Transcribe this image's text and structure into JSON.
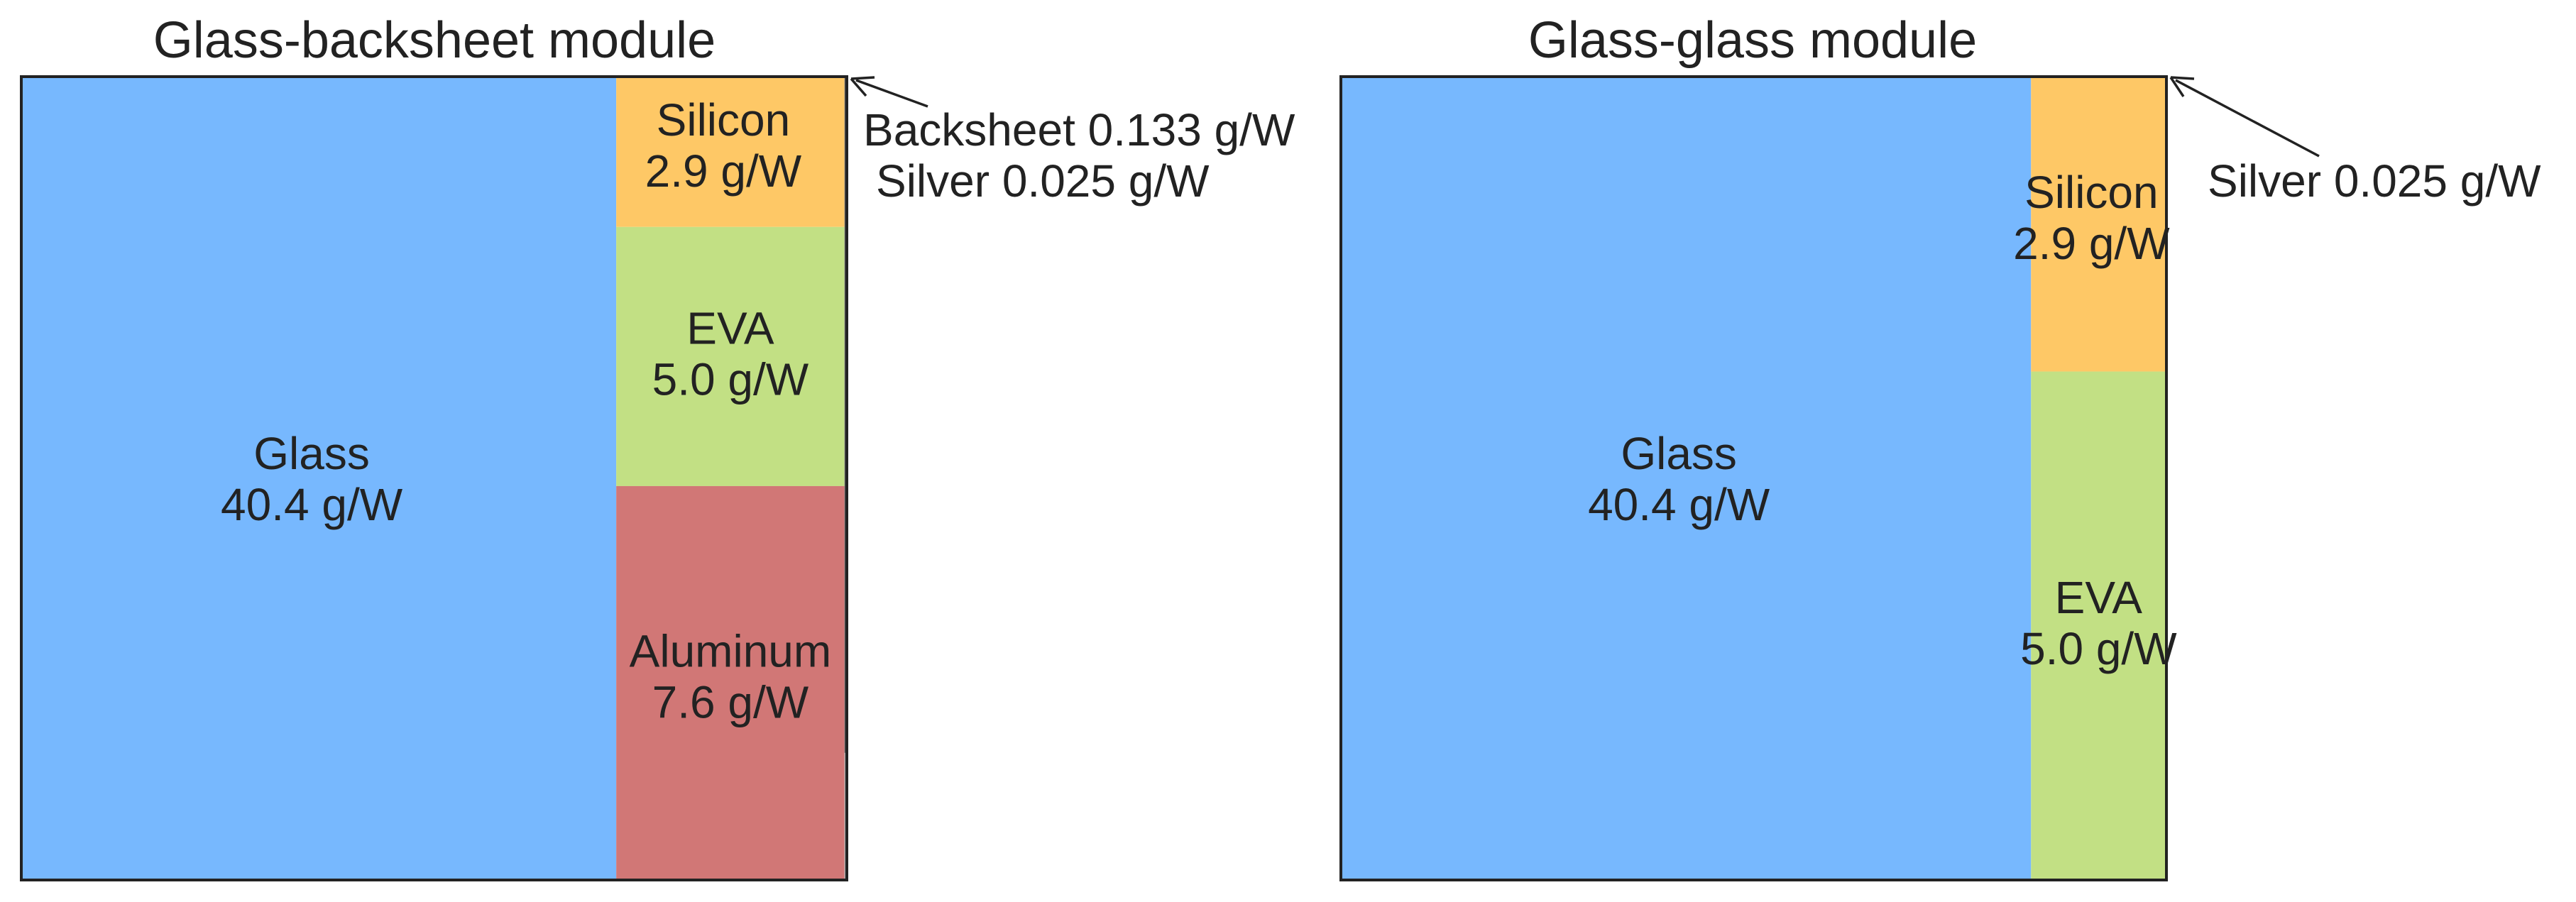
{
  "chart_data": [
    {
      "type": "treemap",
      "title": "Glass-backsheet module",
      "unit": "g/W",
      "colors": {
        "Glass": "#77b8fe",
        "Silicon": "#fec866",
        "EVA": "#c2e084",
        "Aluminum": "#d17776",
        "Backsheet": "#5d5d5d",
        "Silver": "#aaaaaa"
      },
      "items": [
        {
          "name": "Glass",
          "value": 40.4,
          "label_name": "Glass",
          "label_value": "40.4 g/W"
        },
        {
          "name": "Aluminum",
          "value": 7.6,
          "label_name": "Aluminum",
          "label_value": "7.6 g/W"
        },
        {
          "name": "EVA",
          "value": 5.0,
          "label_name": "EVA",
          "label_value": "5.0 g/W"
        },
        {
          "name": "Silicon",
          "value": 2.9,
          "label_name": "Silicon",
          "label_value": "2.9 g/W"
        },
        {
          "name": "Backsheet",
          "value": 0.133
        },
        {
          "name": "Silver",
          "value": 0.025
        }
      ],
      "annotations": [
        "Backsheet 0.133 g/W",
        "Silver 0.025 g/W"
      ]
    },
    {
      "type": "treemap",
      "title": "Glass-glass module",
      "unit": "g/W",
      "colors": {
        "Glass": "#77b8fe",
        "Silicon": "#fec866",
        "EVA": "#c2e084",
        "Silver": "#aaaaaa"
      },
      "items": [
        {
          "name": "Glass",
          "value": 40.4,
          "label_name": "Glass",
          "label_value": "40.4 g/W"
        },
        {
          "name": "EVA",
          "value": 5.0,
          "label_name": "EVA",
          "label_value": "5.0 g/W"
        },
        {
          "name": "Silicon",
          "value": 2.9,
          "label_name": "Silicon",
          "label_value": "2.9 g/W"
        },
        {
          "name": "Silver",
          "value": 0.025
        }
      ],
      "annotations": [
        "Silver 0.025 g/W"
      ]
    }
  ]
}
